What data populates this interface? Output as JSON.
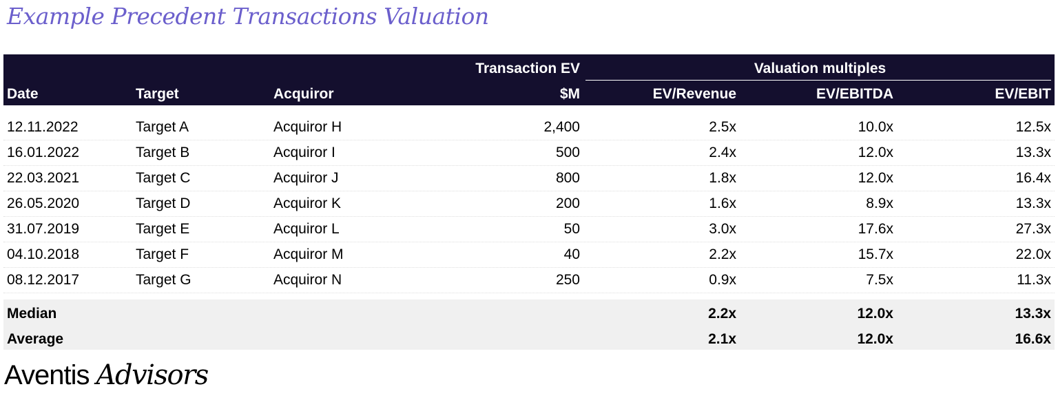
{
  "title": "Example Precedent Transactions Valuation",
  "header": {
    "group_ev": "Transaction EV",
    "group_multiples": "Valuation multiples",
    "columns": [
      "Date",
      "Target",
      "Acquiror",
      "$M",
      "EV/Revenue",
      "EV/EBITDA",
      "EV/EBIT"
    ]
  },
  "rows": [
    [
      "12.11.2022",
      "Target A",
      "Acquiror H",
      "2,400",
      "2.5x",
      "10.0x",
      "12.5x"
    ],
    [
      "16.01.2022",
      "Target B",
      "Acquiror I",
      "500",
      "2.4x",
      "12.0x",
      "13.3x"
    ],
    [
      "22.03.2021",
      "Target C",
      "Acquiror J",
      "800",
      "1.8x",
      "12.0x",
      "16.4x"
    ],
    [
      "26.05.2020",
      "Target D",
      "Acquiror K",
      "200",
      "1.6x",
      "8.9x",
      "13.3x"
    ],
    [
      "31.07.2019",
      "Target E",
      "Acquiror L",
      "50",
      "3.0x",
      "17.6x",
      "27.3x"
    ],
    [
      "04.10.2018",
      "Target F",
      "Acquiror M",
      "40",
      "2.2x",
      "15.7x",
      "22.0x"
    ],
    [
      "08.12.2017",
      "Target G",
      "Acquiror N",
      "250",
      "0.9x",
      "7.5x",
      "11.3x"
    ]
  ],
  "summary": [
    [
      "Median",
      "2.2x",
      "12.0x",
      "13.3x"
    ],
    [
      "Average",
      "2.1x",
      "12.0x",
      "16.6x"
    ]
  ],
  "logo": {
    "part1": "Aventis",
    "part2": "Advisors"
  },
  "colors": {
    "header_bg": "#140f2e",
    "title": "#6b5fcc",
    "summary_bg": "#f0f0f0"
  }
}
